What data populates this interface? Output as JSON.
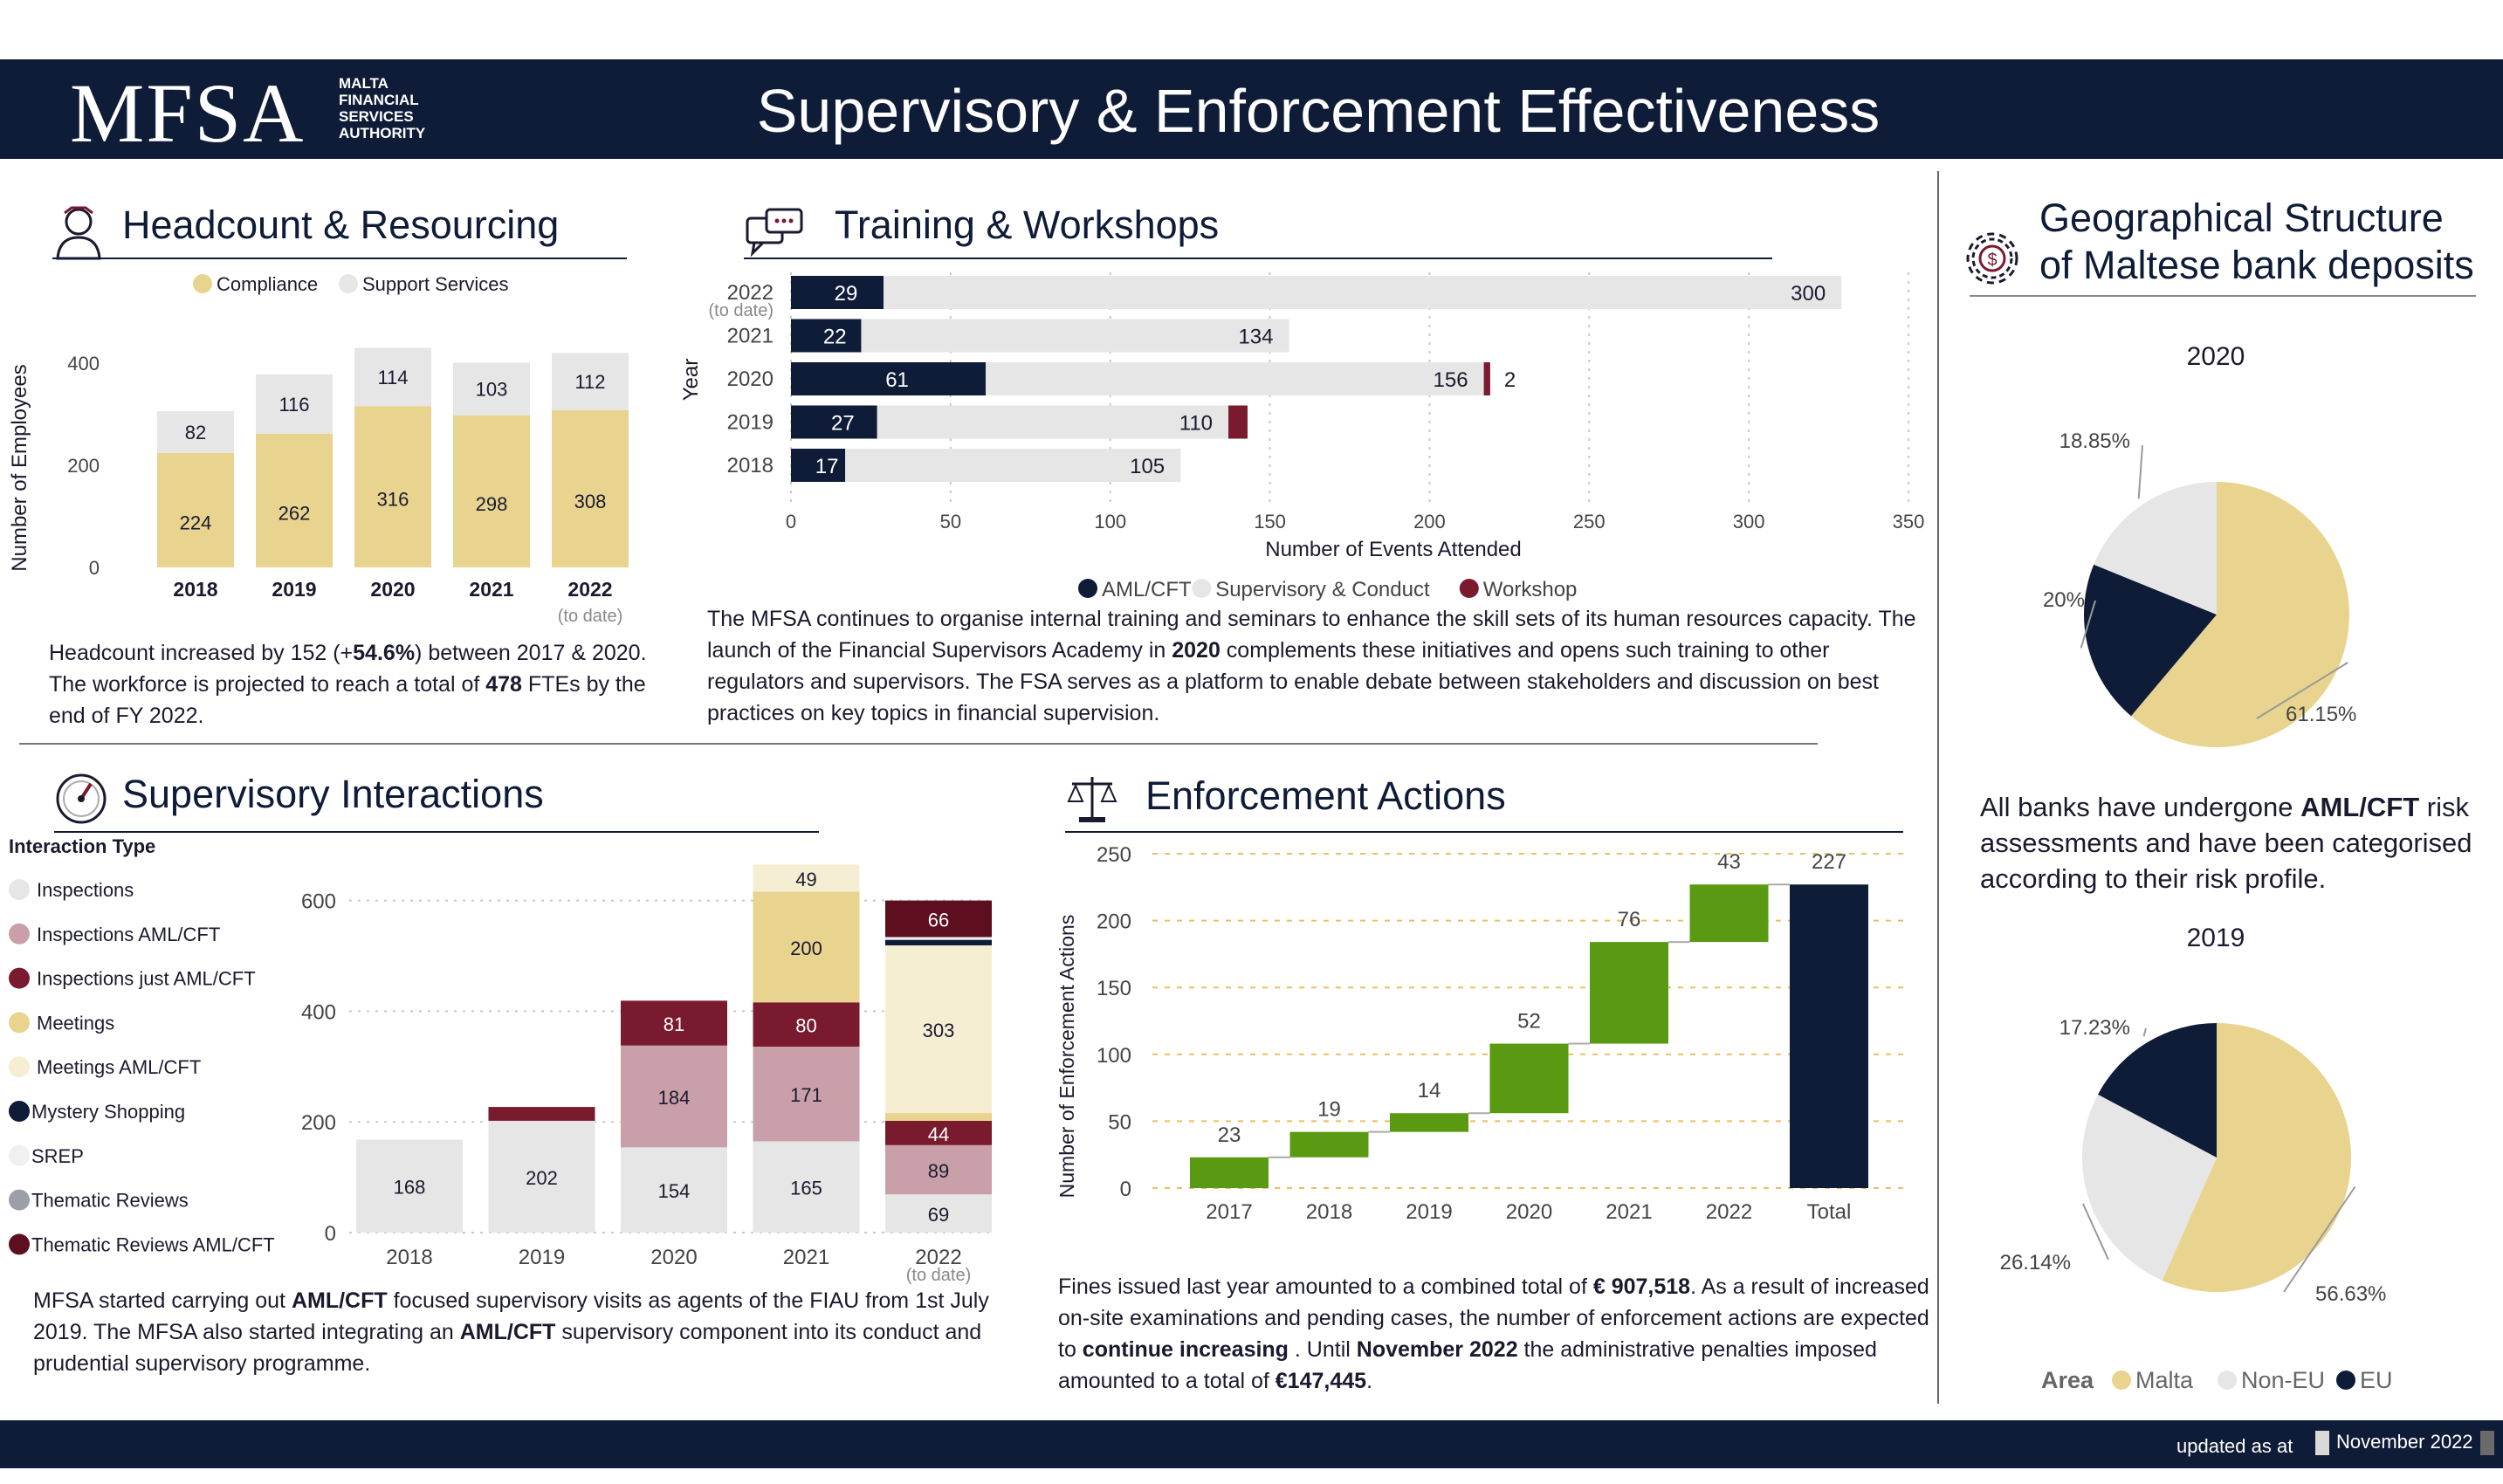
{
  "header": {
    "logo_text": "MFSA",
    "logo_subtext": "MALTA\nFINANCIAL\nSERVICES\nAUTHORITY",
    "title": "Supervisory & Enforcement Effectiveness"
  },
  "footer": {
    "updated_label": "updated as at",
    "updated_date": "November 2022"
  },
  "headcount": {
    "title": "Headcount & Resourcing",
    "icon": "person-icon",
    "paragraph_html": "Headcount increased by 152 (+<b>54.6%</b>) between 2017 &amp; 2020. The workforce is projected to reach a total of <b>478</b> FTEs by the end of FY 2022."
  },
  "training": {
    "title": "Training & Workshops",
    "icon": "chat-bubbles-icon",
    "paragraph_html": "The MFSA continues to organise internal training and seminars to enhance the skill sets of its human resources capacity. The launch of the Financial Supervisors Academy in <b>2020</b> complements these initiatives and opens such training to other regulators and supervisors. The FSA serves as a platform to enable debate between stakeholders and discussion on best practices on key topics in financial supervision."
  },
  "interactions": {
    "title": "Supervisory Interactions",
    "icon": "gauge-icon",
    "paragraph_html": "MFSA started carrying out <b>AML/CFT</b> focused supervisory visits as agents of the FIAU from 1st July 2019. The MFSA also started integrating an <b>AML/CFT</b> supervisory component into its conduct and prudential supervisory programme."
  },
  "enforcement": {
    "title": "Enforcement Actions",
    "icon": "scales-icon",
    "paragraph_html": "Fines issued last year amounted to a combined total of <b>€ 907,518</b>. As a result of increased on-site examinations and pending cases, the number of enforcement actions are expected to <b>continue increasing</b> . Until <b>November 2022</b> the administrative penalties imposed amounted to a total of <b>€147,445</b>."
  },
  "geo": {
    "title_line1": "Geographical Structure",
    "title_line2": "of Maltese bank deposits",
    "icon": "gear-dollar-icon",
    "year_a": "2020",
    "year_b": "2019",
    "note_html": "All banks have undergone <b>AML/CFT</b> risk assessments and have been categorised according to their risk profile."
  },
  "chart_data": [
    {
      "id": "headcount",
      "type": "bar",
      "stacked": true,
      "categories": [
        "2018",
        "2019",
        "2020",
        "2021",
        "2022"
      ],
      "category_notes": [
        "",
        "",
        "",
        "",
        "(to date)"
      ],
      "series": [
        {
          "name": "Compliance",
          "values": [
            224,
            262,
            316,
            298,
            308
          ],
          "color": "#e8d48f"
        },
        {
          "name": "Support Services",
          "values": [
            82,
            116,
            114,
            103,
            112
          ],
          "color": "#e6e6e6"
        }
      ],
      "ylabel": "Number of Employees",
      "yticks": [
        0,
        200,
        400
      ],
      "ylim": [
        0,
        430
      ],
      "legend": "top"
    },
    {
      "id": "training",
      "type": "bar",
      "orientation": "horizontal",
      "categories": [
        "2022",
        "2021",
        "2020",
        "2019",
        "2018"
      ],
      "category_notes": [
        "(to date)",
        "",
        "",
        "",
        ""
      ],
      "series": [
        {
          "name": "AML/CFT",
          "values": [
            29,
            22,
            61,
            27,
            17
          ],
          "color": "#0f1c38"
        },
        {
          "name": "Supervisory & Conduct",
          "values": [
            300,
            134,
            156,
            110,
            105
          ],
          "color": "#e6e6e6"
        },
        {
          "name": "Workshop",
          "values": [
            null,
            null,
            2,
            6,
            null
          ],
          "labels": [
            "",
            "",
            "2",
            "",
            ""
          ],
          "color": "#7a1a2e"
        }
      ],
      "xlabel": "Number of Events Attended",
      "ylabel": "Year",
      "xticks": [
        0,
        50,
        100,
        150,
        200,
        250,
        300,
        350
      ],
      "xlim": [
        0,
        350
      ],
      "grid": true,
      "legend": "bottom"
    },
    {
      "id": "interactions",
      "type": "bar",
      "stacked": true,
      "categories": [
        "2018",
        "2019",
        "2020",
        "2021",
        "2022"
      ],
      "category_notes": [
        "",
        "",
        "",
        "",
        "(to date)"
      ],
      "legend_title": "Interaction Type",
      "series": [
        {
          "name": "Inspections",
          "values": [
            168,
            202,
            154,
            165,
            69
          ],
          "color": "#e6e6e6"
        },
        {
          "name": "Inspections  AML/CFT",
          "values": [
            0,
            0,
            184,
            171,
            89
          ],
          "color": "#c9a0aa"
        },
        {
          "name": "Inspections just AML/CFT",
          "values": [
            0,
            25,
            81,
            80,
            44
          ],
          "color": "#7a1a2e"
        },
        {
          "name": "Meetings",
          "values": [
            0,
            0,
            0,
            200,
            14
          ],
          "labels": [
            "",
            "",
            "",
            "200",
            ""
          ],
          "color": "#e8d48f"
        },
        {
          "name": "Meetings  AML/CFT",
          "values": [
            0,
            0,
            0,
            49,
            303
          ],
          "color": "#f5eed3"
        },
        {
          "name": "Mystery Shopping",
          "values": [
            0,
            0,
            0,
            0,
            10
          ],
          "labels": [
            "",
            "",
            "",
            "",
            ""
          ],
          "color": "#0f1c38"
        },
        {
          "name": "SREP",
          "values": [
            0,
            0,
            0,
            0,
            5
          ],
          "labels": [
            "",
            "",
            "",
            "",
            ""
          ],
          "color": "#f0f0f0"
        },
        {
          "name": "Thematic Reviews",
          "values": [
            0,
            0,
            0,
            0,
            0
          ],
          "color": "#9aa0a6"
        },
        {
          "name": "Thematic Reviews   AML/CFT",
          "values": [
            0,
            0,
            0,
            0,
            66
          ],
          "color": "#5e0f1f"
        }
      ],
      "yticks": [
        0,
        200,
        400,
        600
      ],
      "ylim": [
        0,
        660
      ],
      "grid": true,
      "legend": "left"
    },
    {
      "id": "enforcement",
      "type": "waterfall",
      "categories": [
        "2017",
        "2018",
        "2019",
        "2020",
        "2021",
        "2022",
        "Total"
      ],
      "values": [
        23,
        19,
        14,
        52,
        76,
        43,
        227
      ],
      "ylabel": "Number of Enforcement Actions",
      "yticks": [
        0,
        50,
        100,
        150,
        200,
        250
      ],
      "ylim": [
        0,
        255
      ],
      "grid": true,
      "colors": {
        "increase": "#5a9a12",
        "total": "#0f1c38"
      }
    },
    {
      "id": "geo_2020",
      "type": "pie",
      "title": "2020",
      "labels": [
        "Malta",
        "EU",
        "Non-EU"
      ],
      "values": [
        61.15,
        20,
        18.85
      ],
      "value_labels": [
        "61.15%",
        "20%",
        "18.85%"
      ],
      "colors": [
        "#e8d48f",
        "#0f1c38",
        "#e6e6e6"
      ]
    },
    {
      "id": "geo_2019",
      "type": "pie",
      "title": "2019",
      "labels": [
        "Malta",
        "Non-EU",
        "EU"
      ],
      "values": [
        56.63,
        26.14,
        17.23
      ],
      "value_labels": [
        "56.63%",
        "26.14%",
        "17.23%"
      ],
      "colors": [
        "#e8d48f",
        "#e6e6e6",
        "#0f1c38"
      ],
      "legend_title": "Area",
      "legend": [
        {
          "name": "Malta",
          "color": "#e8d48f"
        },
        {
          "name": "Non-EU",
          "color": "#e6e6e6"
        },
        {
          "name": "EU",
          "color": "#0f1c38"
        }
      ]
    }
  ]
}
